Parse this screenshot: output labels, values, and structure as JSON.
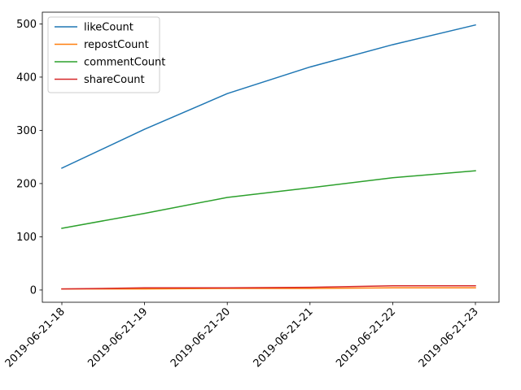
{
  "chart_data": {
    "type": "line",
    "title": "",
    "xlabel": "",
    "ylabel": "",
    "categories": [
      "2019-06-21-18",
      "2019-06-21-19",
      "2019-06-21-20",
      "2019-06-21-21",
      "2019-06-21-22",
      "2019-06-21-23"
    ],
    "ylim": [
      -23,
      522
    ],
    "yticks": [
      0,
      100,
      200,
      300,
      400,
      500
    ],
    "legend_location": "upper left",
    "grid": false,
    "series": [
      {
        "name": "likeCount",
        "color": "#1f77b4",
        "values": [
          229,
          302,
          369,
          419,
          461,
          498
        ]
      },
      {
        "name": "repostCount",
        "color": "#ff7f0e",
        "values": [
          2,
          2,
          3,
          3,
          4,
          4
        ]
      },
      {
        "name": "commentCount",
        "color": "#2ca02c",
        "values": [
          116,
          144,
          174,
          192,
          211,
          224
        ]
      },
      {
        "name": "shareCount",
        "color": "#d62728",
        "values": [
          2,
          4,
          4,
          5,
          8,
          8
        ]
      }
    ]
  }
}
